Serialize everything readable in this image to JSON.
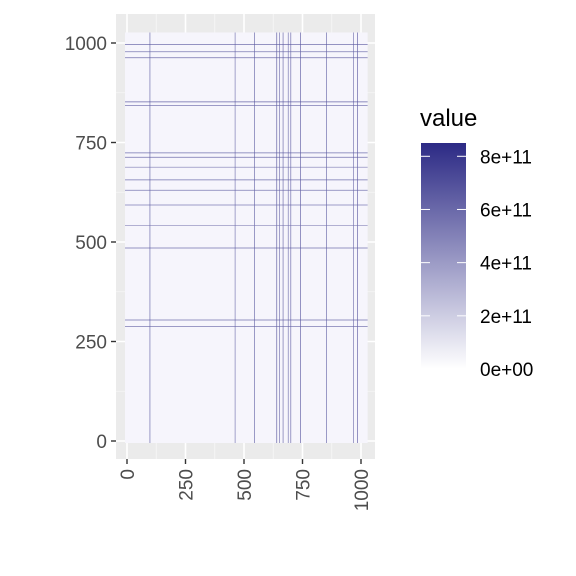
{
  "chart_data": {
    "type": "heatmap",
    "title": "",
    "xlabel": "",
    "ylabel": "",
    "xlim": [
      0,
      1024
    ],
    "ylim": [
      0,
      1024
    ],
    "x_ticks": [
      0,
      250,
      500,
      750,
      1000
    ],
    "x_tick_labels": [
      "0",
      "250",
      "500",
      "750",
      "1000"
    ],
    "y_ticks": [
      0,
      250,
      500,
      750,
      1000
    ],
    "y_tick_labels": [
      "0",
      "250",
      "500",
      "750",
      "1000"
    ],
    "grid": true,
    "legend": {
      "title": "value",
      "position": "right",
      "breaks": [
        0,
        200000000000,
        400000000000,
        600000000000,
        800000000000
      ],
      "labels": [
        "0e+00",
        "2e+11",
        "4e+11",
        "6e+11",
        "8e+11"
      ],
      "min": 0,
      "max": 850000000000,
      "low_color": "#f7f7fd",
      "high_color": "#2c2a85"
    },
    "background_value": 15000000000,
    "background_color": "#f6f5fc",
    "column_lines": [
      {
        "x": 98,
        "value": 650000000000
      },
      {
        "x": 462,
        "value": 600000000000
      },
      {
        "x": 545,
        "value": 650000000000
      },
      {
        "x": 640,
        "value": 700000000000
      },
      {
        "x": 652,
        "value": 600000000000
      },
      {
        "x": 667,
        "value": 650000000000
      },
      {
        "x": 689,
        "value": 600000000000
      },
      {
        "x": 700,
        "value": 650000000000
      },
      {
        "x": 742,
        "value": 700000000000
      },
      {
        "x": 853,
        "value": 650000000000
      },
      {
        "x": 968,
        "value": 600000000000
      },
      {
        "x": 985,
        "value": 700000000000
      }
    ],
    "row_lines": [
      {
        "y": 996,
        "value": 650000000000
      },
      {
        "y": 978,
        "value": 600000000000
      },
      {
        "y": 963,
        "value": 650000000000
      },
      {
        "y": 852,
        "value": 700000000000
      },
      {
        "y": 843,
        "value": 600000000000
      },
      {
        "y": 724,
        "value": 650000000000
      },
      {
        "y": 713,
        "value": 650000000000
      },
      {
        "y": 688,
        "value": 600000000000
      },
      {
        "y": 656,
        "value": 650000000000
      },
      {
        "y": 630,
        "value": 600000000000
      },
      {
        "y": 593,
        "value": 600000000000
      },
      {
        "y": 541,
        "value": 550000000000
      },
      {
        "y": 485,
        "value": 650000000000
      },
      {
        "y": 304,
        "value": 650000000000
      },
      {
        "y": 288,
        "value": 600000000000
      }
    ]
  }
}
